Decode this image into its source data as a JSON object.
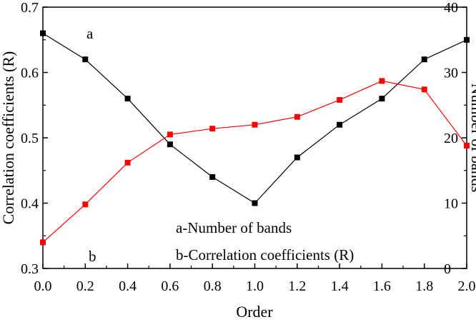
{
  "chart_data": {
    "type": "line",
    "title": "",
    "xlabel": "Order",
    "ylabel_left": "Correlation coefficients (R)",
    "ylabel_right": "Number of bands",
    "xlim": [
      0.0,
      2.0
    ],
    "ylim_left": [
      0.3,
      0.7
    ],
    "ylim_right": [
      0,
      40
    ],
    "x_ticks": [
      "0.0",
      "0.2",
      "0.4",
      "0.6",
      "0.8",
      "1.0",
      "1.2",
      "1.4",
      "1.6",
      "1.8",
      "2.0"
    ],
    "y_ticks_left": [
      "0.3",
      "0.4",
      "0.5",
      "0.6",
      "0.7"
    ],
    "y_ticks_right": [
      "0",
      "10",
      "20",
      "30",
      "40"
    ],
    "grid": false,
    "x": [
      0.0,
      0.2,
      0.4,
      0.6,
      0.8,
      1.0,
      1.2,
      1.4,
      1.6,
      1.8,
      2.0
    ],
    "series": [
      {
        "label": "a",
        "axis": "right",
        "color": "#000000",
        "values": [
          36,
          32,
          26,
          19,
          14,
          10,
          17,
          22,
          26,
          32,
          35
        ]
      },
      {
        "label": "b",
        "axis": "left",
        "color": "#ff0000",
        "values": [
          0.34,
          0.398,
          0.462,
          0.505,
          0.514,
          0.52,
          0.532,
          0.558,
          0.587,
          0.574,
          0.488
        ]
      }
    ],
    "annotations": [
      "a-Number of bands",
      "b-Correlation coefficients (R)"
    ]
  }
}
